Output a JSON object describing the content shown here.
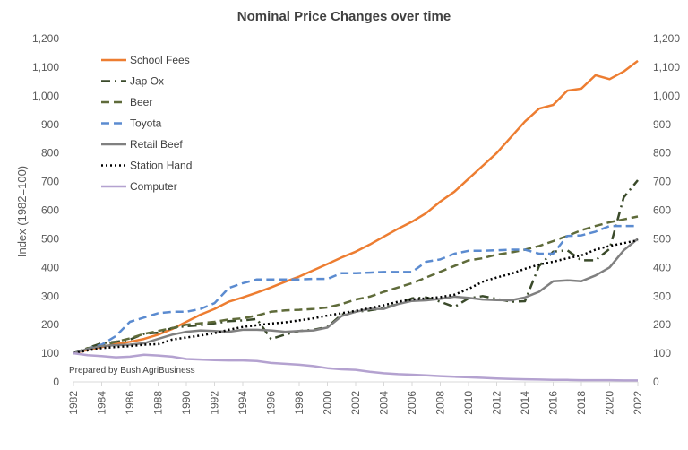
{
  "chart_data": {
    "type": "line",
    "title": "Nominal Price Changes over time",
    "ylabel": "Index (1982=100)",
    "xlabel": "",
    "note": "Prepared by Bush AgriBusiness",
    "ylim": [
      0,
      1200
    ],
    "y_ticks": [
      "0",
      "100",
      "200",
      "300",
      "400",
      "500",
      "600",
      "700",
      "800",
      "900",
      "1,000",
      "1,100",
      "1,200"
    ],
    "x_ticks": [
      "1982",
      "1984",
      "1986",
      "1988",
      "1990",
      "1992",
      "1994",
      "1996",
      "1998",
      "2000",
      "2002",
      "2004",
      "2006",
      "2008",
      "2010",
      "2012",
      "2014",
      "2016",
      "2018",
      "2020",
      "2022"
    ],
    "gridlines": false,
    "secondary_y_axis": true,
    "legend_position": "top-left",
    "x": [
      1982,
      1983,
      1984,
      1985,
      1986,
      1987,
      1988,
      1989,
      1990,
      1991,
      1992,
      1993,
      1994,
      1995,
      1996,
      1997,
      1998,
      1999,
      2000,
      2001,
      2002,
      2003,
      2004,
      2005,
      2006,
      2007,
      2008,
      2009,
      2010,
      2011,
      2012,
      2013,
      2014,
      2015,
      2016,
      2017,
      2018,
      2019,
      2020,
      2021,
      2022
    ],
    "series": [
      {
        "name": "School Fees",
        "color": "#ED7D31",
        "style": "solid",
        "values": [
          100,
          112,
          122,
          132,
          140,
          150,
          165,
          185,
          210,
          235,
          255,
          280,
          295,
          312,
          330,
          350,
          368,
          390,
          412,
          435,
          455,
          480,
          508,
          535,
          560,
          590,
          630,
          665,
          710,
          755,
          800,
          855,
          910,
          955,
          968,
          1018,
          1025,
          1072,
          1058,
          1085,
          1122
        ]
      },
      {
        "name": "Jap Ox",
        "color": "#3A4A2A",
        "style": "dashdot",
        "values": [
          100,
          118,
          135,
          140,
          148,
          168,
          172,
          188,
          195,
          198,
          205,
          212,
          215,
          220,
          150,
          165,
          178,
          182,
          192,
          235,
          245,
          250,
          258,
          272,
          292,
          295,
          280,
          262,
          292,
          300,
          290,
          280,
          282,
          405,
          455,
          460,
          425,
          425,
          465,
          645,
          705
        ]
      },
      {
        "name": "Beer",
        "color": "#5F6B3A",
        "style": "dashed",
        "values": [
          100,
          118,
          126,
          140,
          152,
          168,
          178,
          188,
          200,
          205,
          210,
          218,
          222,
          232,
          245,
          250,
          252,
          255,
          260,
          272,
          288,
          298,
          315,
          330,
          345,
          365,
          385,
          405,
          425,
          432,
          445,
          452,
          462,
          475,
          492,
          510,
          530,
          545,
          558,
          568,
          578
        ]
      },
      {
        "name": "Toyota",
        "color": "#5B8BD0",
        "style": "dashed",
        "values": [
          100,
          115,
          130,
          160,
          210,
          225,
          240,
          245,
          245,
          255,
          275,
          328,
          345,
          358,
          358,
          358,
          358,
          360,
          360,
          380,
          380,
          382,
          384,
          384,
          384,
          420,
          428,
          448,
          458,
          458,
          460,
          462,
          462,
          448,
          448,
          510,
          512,
          525,
          545,
          545,
          545
        ]
      },
      {
        "name": "Retail Beef",
        "color": "#808080",
        "style": "solid",
        "values": [
          100,
          115,
          125,
          128,
          130,
          135,
          150,
          165,
          175,
          180,
          178,
          175,
          182,
          182,
          180,
          175,
          178,
          180,
          190,
          230,
          245,
          255,
          255,
          272,
          283,
          285,
          290,
          298,
          294,
          288,
          286,
          285,
          295,
          315,
          352,
          355,
          352,
          372,
          400,
          460,
          500
        ]
      },
      {
        "name": "Station Hand",
        "color": "#000000",
        "style": "dotted",
        "values": [
          100,
          110,
          118,
          122,
          125,
          130,
          132,
          148,
          155,
          162,
          170,
          182,
          192,
          198,
          204,
          208,
          215,
          222,
          232,
          240,
          248,
          258,
          268,
          280,
          288,
          292,
          296,
          305,
          325,
          350,
          365,
          378,
          395,
          410,
          420,
          432,
          442,
          462,
          475,
          485,
          495
        ]
      },
      {
        "name": "Computer",
        "color": "#B4A2D0",
        "style": "solid",
        "values": [
          100,
          93,
          90,
          86,
          88,
          95,
          92,
          88,
          80,
          78,
          76,
          75,
          75,
          73,
          66,
          63,
          60,
          55,
          48,
          44,
          42,
          35,
          30,
          27,
          25,
          23,
          20,
          18,
          16,
          14,
          12,
          10,
          9,
          8,
          7,
          7,
          6,
          6,
          6,
          5,
          5
        ]
      }
    ]
  }
}
